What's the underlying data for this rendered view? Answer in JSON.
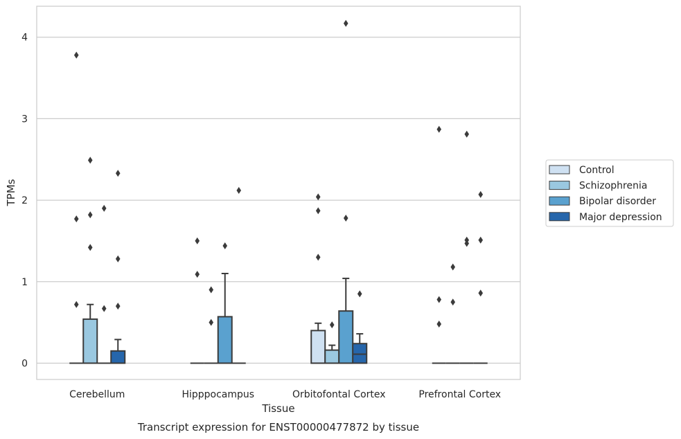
{
  "chart_data": {
    "type": "box",
    "title": "Transcript expression for ENST00000477872 by tissue",
    "xlabel": "Tissue",
    "ylabel": "TPMs",
    "ylim": [
      -0.2,
      4.38
    ],
    "yticks": [
      0,
      1,
      2,
      3,
      4
    ],
    "grid": "horizontal",
    "legend_position": "right",
    "categories": [
      "Cerebellum",
      "Hipppocampus",
      "Orbitofontal Cortex",
      "Prefrontal Cortex"
    ],
    "series": [
      {
        "name": "Control",
        "color": "#cfe1f2",
        "boxes": [
          {
            "q1": 0,
            "median": 0,
            "q3": 0,
            "whisker_low": 0,
            "whisker_high": 0,
            "outliers": [
              0.72,
              1.77,
              3.78
            ]
          },
          {
            "q1": 0,
            "median": 0,
            "q3": 0,
            "whisker_low": 0,
            "whisker_high": 0,
            "outliers": [
              1.09,
              1.5
            ]
          },
          {
            "q1": 0,
            "median": 0,
            "q3": 0.4,
            "whisker_low": 0,
            "whisker_high": 0.49,
            "outliers": [
              1.3,
              1.87,
              2.04
            ]
          },
          {
            "q1": 0,
            "median": 0,
            "q3": 0,
            "whisker_low": 0,
            "whisker_high": 0,
            "outliers": [
              0.48,
              0.78,
              2.87
            ]
          }
        ]
      },
      {
        "name": "Schizophrenia",
        "color": "#9ac8e0",
        "boxes": [
          {
            "q1": 0,
            "median": 0,
            "q3": 0.54,
            "whisker_low": 0,
            "whisker_high": 0.72,
            "outliers": [
              1.42,
              1.82,
              2.49
            ]
          },
          {
            "q1": 0,
            "median": 0,
            "q3": 0,
            "whisker_low": 0,
            "whisker_high": 0,
            "outliers": [
              0.5,
              0.9
            ]
          },
          {
            "q1": 0,
            "median": 0,
            "q3": 0.16,
            "whisker_low": 0,
            "whisker_high": 0.22,
            "outliers": [
              0.47
            ]
          },
          {
            "q1": 0,
            "median": 0,
            "q3": 0,
            "whisker_low": 0,
            "whisker_high": 0,
            "outliers": [
              0.75,
              1.18
            ]
          }
        ]
      },
      {
        "name": "Bipolar disorder",
        "color": "#5aa1cf",
        "boxes": [
          {
            "q1": 0,
            "median": 0,
            "q3": 0,
            "whisker_low": 0,
            "whisker_high": 0,
            "outliers": [
              0.67,
              1.9
            ]
          },
          {
            "q1": 0,
            "median": 0,
            "q3": 0.57,
            "whisker_low": 0,
            "whisker_high": 1.1,
            "outliers": [
              1.44
            ]
          },
          {
            "q1": 0,
            "median": 0,
            "q3": 0.64,
            "whisker_low": 0,
            "whisker_high": 1.04,
            "outliers": [
              1.78,
              4.17
            ]
          },
          {
            "q1": 0,
            "median": 0,
            "q3": 0,
            "whisker_low": 0,
            "whisker_high": 0,
            "outliers": [
              1.47,
              1.51,
              2.81
            ]
          }
        ]
      },
      {
        "name": "Major depression",
        "color": "#2666ab",
        "boxes": [
          {
            "q1": 0,
            "median": 0,
            "q3": 0.15,
            "whisker_low": 0,
            "whisker_high": 0.29,
            "outliers": [
              0.7,
              1.28,
              2.33
            ]
          },
          {
            "q1": 0,
            "median": 0,
            "q3": 0,
            "whisker_low": 0,
            "whisker_high": 0,
            "outliers": [
              2.12
            ]
          },
          {
            "q1": 0,
            "median": 0.11,
            "q3": 0.24,
            "whisker_low": 0,
            "whisker_high": 0.36,
            "outliers": [
              0.85
            ]
          },
          {
            "q1": 0,
            "median": 0,
            "q3": 0,
            "whisker_low": 0,
            "whisker_high": 0,
            "outliers": [
              0.86,
              1.51,
              2.07
            ]
          }
        ]
      }
    ]
  }
}
